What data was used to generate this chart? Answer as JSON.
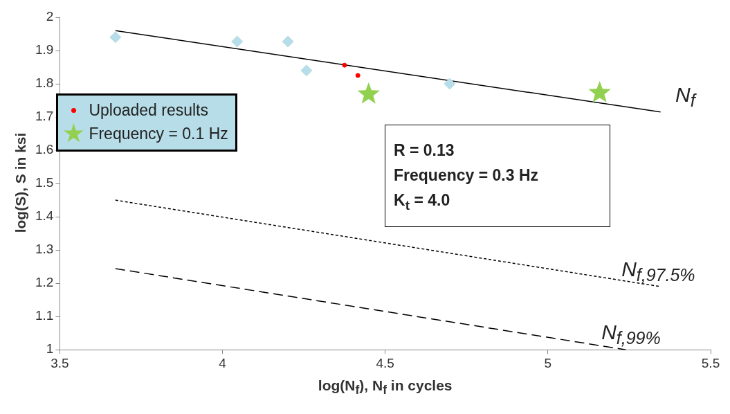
{
  "chart_data": {
    "type": "scatter",
    "xlabel": "log(N$_{f}$), N$_{f}$ in cycles",
    "ylabel": "log(S), S in ksi",
    "xlim": [
      3.5,
      5.5
    ],
    "xticks": [
      3.5,
      4,
      4.5,
      5,
      5.5
    ],
    "ylim": [
      1,
      2
    ],
    "yticks": [
      1,
      1.1,
      1.2,
      1.3,
      1.4,
      1.5,
      1.6,
      1.7,
      1.8,
      1.9,
      2
    ],
    "legend": "top left",
    "annotations": [
      "R = 0.13",
      "Frequency = 0.3 Hz",
      "K$_{t}$ = 4.0"
    ],
    "series": [
      {
        "marker": "diamond",
        "color": "#b7dde8",
        "x": [
          3.671,
          4.045,
          4.201,
          4.258,
          4.698
        ],
        "values": [
          1.94,
          1.927,
          1.927,
          1.84,
          1.8
        ]
      },
      {
        "name": "Uploaded results",
        "marker": "circle",
        "color": "#ff0000",
        "x": [
          4.375,
          4.416
        ],
        "values": [
          1.856,
          1.825
        ]
      },
      {
        "name": "Frequency = 0.1 Hz",
        "marker": "star",
        "color": "#92d050",
        "x": [
          4.449,
          5.159
        ],
        "values": [
          1.769,
          1.773
        ]
      },
      {
        "type": "line",
        "name": "N$_{f}$",
        "marker": "none",
        "line_style": "solid",
        "color": "#000000",
        "x": [
          3.671,
          5.346
        ],
        "values": [
          1.96,
          1.715
        ]
      },
      {
        "type": "line",
        "name": "N$_{f,97.5%}$",
        "marker": "none",
        "line_style": "dotted",
        "color": "#000000",
        "x": [
          3.671,
          5.346
        ],
        "values": [
          1.45,
          1.19
        ]
      },
      {
        "type": "line",
        "name": "N$_{f,99%}$",
        "marker": "none",
        "line_style": "dashed",
        "color": "#000000",
        "x": [
          3.671,
          5.24
        ],
        "values": [
          1.244,
          1.0
        ]
      }
    ]
  }
}
